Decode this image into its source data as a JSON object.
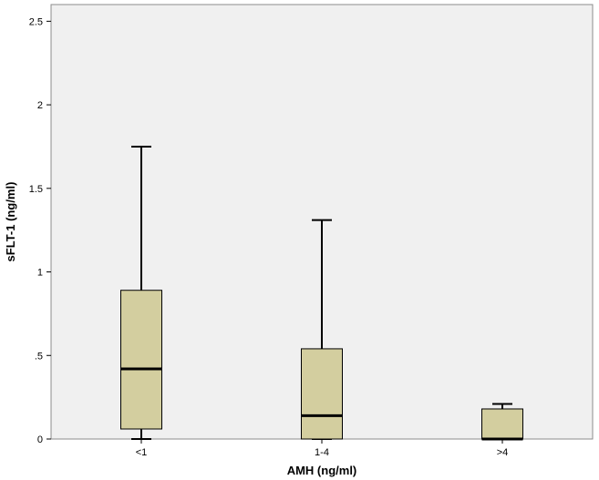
{
  "chart_data": {
    "type": "boxplot",
    "title": "",
    "xlabel": "AMH (ng/ml)",
    "ylabel": "sFLT-1 (ng/ml)",
    "ylim": [
      0,
      2.6
    ],
    "yticks": [
      {
        "value": 0,
        "label": "0"
      },
      {
        "value": 0.5,
        "label": ".5"
      },
      {
        "value": 1,
        "label": "1"
      },
      {
        "value": 1.5,
        "label": "1.5"
      },
      {
        "value": 2,
        "label": "2"
      },
      {
        "value": 2.5,
        "label": "2.5"
      }
    ],
    "categories": [
      "<1",
      "1-4",
      ">4"
    ],
    "boxes": [
      {
        "category": "<1",
        "min": 0.0,
        "q1": 0.06,
        "median": 0.42,
        "q3": 0.89,
        "max": 1.75
      },
      {
        "category": "1-4",
        "min": 0.0,
        "q1": 0.0,
        "median": 0.14,
        "q3": 0.54,
        "max": 1.31
      },
      {
        "category": ">4",
        "min": 0.0,
        "q1": 0.0,
        "median": 0.0,
        "q3": 0.18,
        "max": 0.21
      }
    ],
    "grid": false,
    "legend": "none",
    "colors": {
      "plot_bg": "#f0f0f0",
      "box_fill": "#d3ce9f",
      "stroke": "#000000"
    }
  }
}
